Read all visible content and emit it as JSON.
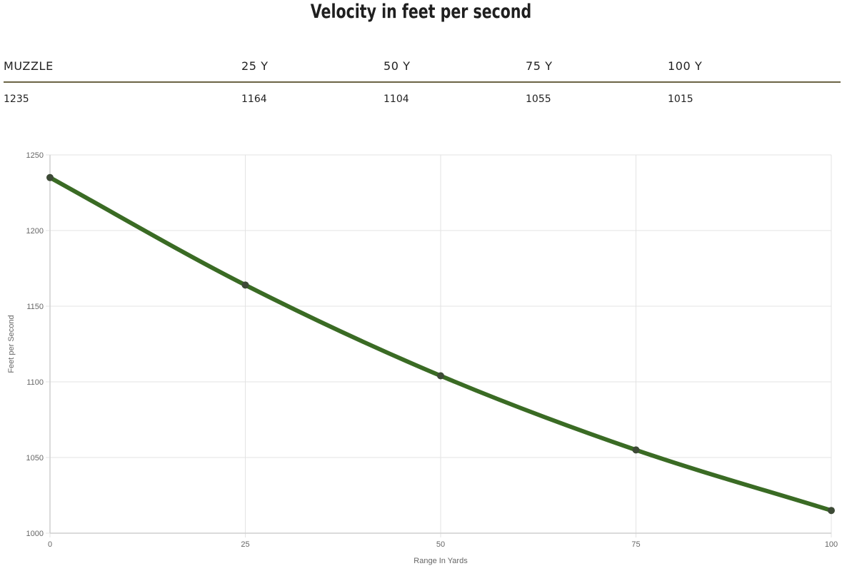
{
  "title": "Velocity in feet per second",
  "table": {
    "headers": [
      "MUZZLE",
      "25 Y",
      "50 Y",
      "75 Y",
      "100 Y"
    ],
    "values": [
      "1235",
      "1164",
      "1104",
      "1055",
      "1015"
    ]
  },
  "chart_data": {
    "type": "line",
    "title": "Velocity in feet per second",
    "xlabel": "Range In Yards",
    "ylabel": "Feet per Second",
    "x": [
      0,
      25,
      50,
      75,
      100
    ],
    "xticks": [
      0,
      25,
      50,
      75,
      100
    ],
    "yticks": [
      1000,
      1050,
      1100,
      1150,
      1200,
      1250
    ],
    "xlim": [
      0,
      100
    ],
    "ylim": [
      1000,
      1250
    ],
    "grid": true,
    "legend": "none",
    "series": [
      {
        "values": [
          1235,
          1164,
          1104,
          1055,
          1015
        ],
        "line_color": "#3a6b24",
        "point_color": "#3d4a36"
      }
    ],
    "colors": {
      "grid": "#e3e3e3",
      "axis": "#cfcfcf",
      "tick_text": "#666666"
    }
  }
}
